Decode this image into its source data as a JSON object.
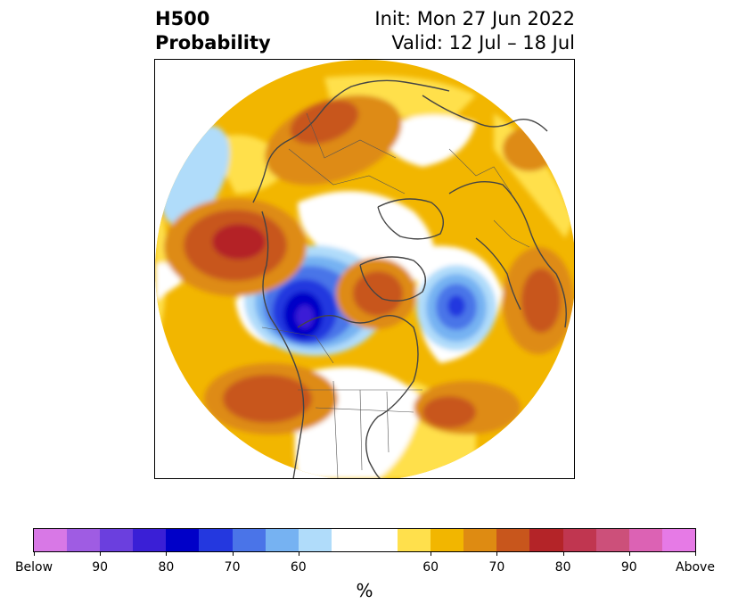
{
  "header": {
    "title_line1": "H500",
    "title_line2": "Probability",
    "init_text": "Init: Mon 27 Jun 2022",
    "valid_text": "Valid: 12 Jul – 18 Jul"
  },
  "colorbar": {
    "unit": "%",
    "segments": [
      {
        "color": "#d878e6"
      },
      {
        "color": "#9f5ce3"
      },
      {
        "color": "#6b3fde"
      },
      {
        "color": "#3a1fd6"
      },
      {
        "color": "#0000c8"
      },
      {
        "color": "#2438df"
      },
      {
        "color": "#4a74e8"
      },
      {
        "color": "#76b2f2"
      },
      {
        "color": "#b0dcfa"
      },
      {
        "color": "#ffffff"
      },
      {
        "color": "#ffffff"
      },
      {
        "color": "#ffe04c"
      },
      {
        "color": "#f2b600"
      },
      {
        "color": "#de8b12"
      },
      {
        "color": "#c8561c"
      },
      {
        "color": "#b42428"
      },
      {
        "color": "#c03650"
      },
      {
        "color": "#cc507a"
      },
      {
        "color": "#dc62b4"
      },
      {
        "color": "#e67ae6"
      }
    ],
    "tick_labels": [
      "Below",
      "90",
      "80",
      "70",
      "60",
      "60",
      "70",
      "80",
      "90",
      "Above"
    ]
  }
}
